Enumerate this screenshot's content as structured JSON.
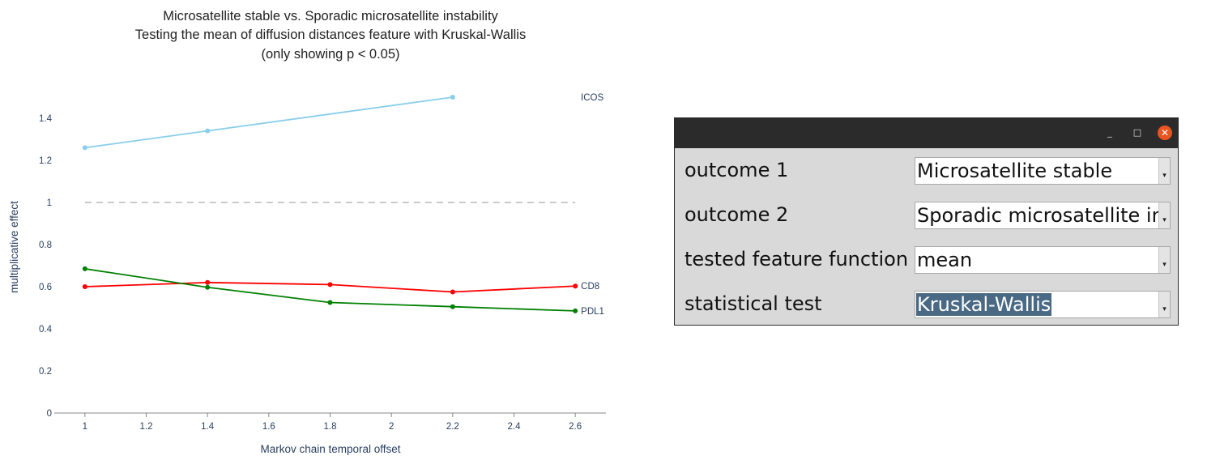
{
  "chart": {
    "title_lines": [
      "Microsatellite stable vs. Sporadic microsatellite instability",
      "Testing the mean of diffusion distances feature with Kruskal-Wallis",
      "(only showing p < 0.05)"
    ]
  },
  "chart_data": {
    "type": "line",
    "xlabel": "Markov chain temporal offset",
    "ylabel": "multiplicative effect",
    "xlim": [
      0.9,
      2.7
    ],
    "ylim": [
      0,
      1.5
    ],
    "xticks": [
      "1",
      "1.2",
      "1.4",
      "1.6",
      "1.8",
      "2",
      "2.2",
      "2.4",
      "2.6"
    ],
    "yticks": [
      "0",
      "0.2",
      "0.4",
      "0.6",
      "0.8",
      "1",
      "1.2",
      "1.4"
    ],
    "reference_line": {
      "y": 1,
      "style": "dashed",
      "color": "#aaaaaa",
      "x_range": [
        1,
        2.6
      ]
    },
    "legend": "end-of-line labels",
    "grid": false,
    "series": [
      {
        "name": "ICOS",
        "color": "#87ceeb",
        "x": [
          1,
          1.4,
          2.2
        ],
        "y": [
          1.26,
          1.34,
          1.5
        ]
      },
      {
        "name": "CD8",
        "color": "#ff0000",
        "x": [
          1,
          1.4,
          1.8,
          2.2,
          2.6
        ],
        "y": [
          0.6,
          0.62,
          0.61,
          0.575,
          0.603
        ]
      },
      {
        "name": "PDL1",
        "color": "#008000",
        "x": [
          1,
          1.4,
          1.8,
          2.2,
          2.6
        ],
        "y": [
          0.685,
          0.597,
          0.525,
          0.505,
          0.485
        ]
      }
    ]
  },
  "dialog": {
    "title": "",
    "buttons": {
      "minimize": "_",
      "maximize": "□",
      "close": "✕"
    },
    "rows": [
      {
        "label": "outcome 1",
        "value": "Microsatellite stable"
      },
      {
        "label": "outcome 2",
        "value": "Sporadic microsatellite instability"
      },
      {
        "label": "tested feature function",
        "value": "mean"
      },
      {
        "label": "statistical test",
        "value": "Kruskal-Wallis"
      }
    ]
  },
  "icons": {
    "close": "close-icon",
    "minimize": "minimize-icon",
    "maximize": "maximize-icon",
    "dropdown": "chevron-down-icon"
  }
}
